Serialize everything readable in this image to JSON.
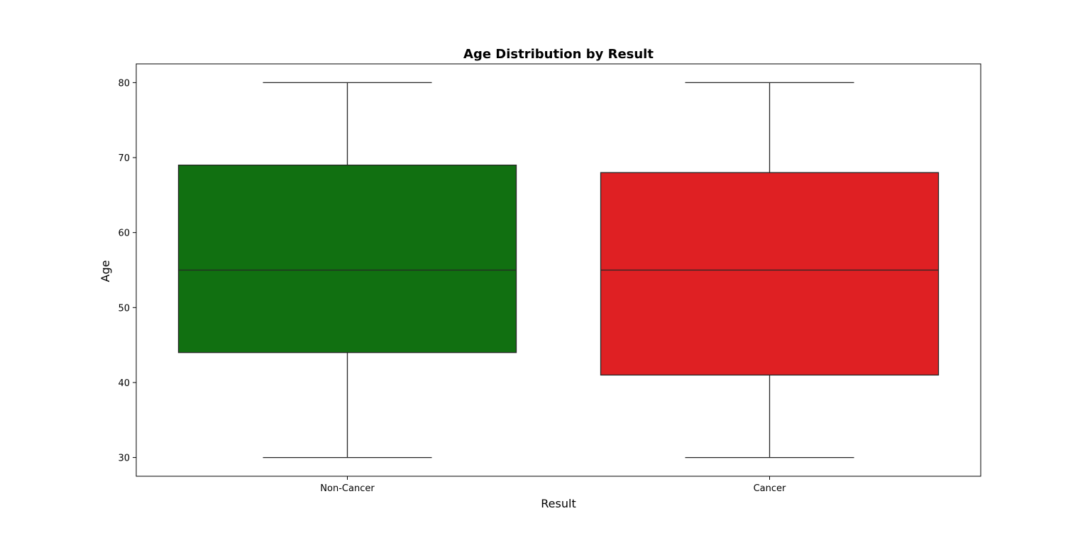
{
  "chart_data": {
    "type": "box",
    "title": "Age Distribution by Result",
    "xlabel": "Result",
    "ylabel": "Age",
    "categories": [
      "Non-Cancer",
      "Cancer"
    ],
    "boxes": [
      {
        "category": "Non-Cancer",
        "min": 30,
        "q1": 44,
        "median": 55,
        "q3": 69,
        "max": 80,
        "color": "#117011"
      },
      {
        "category": "Cancer",
        "min": 30,
        "q1": 41,
        "median": 55,
        "q3": 68,
        "max": 80,
        "color": "#df2023"
      }
    ],
    "ylim": [
      27.5,
      82.5
    ],
    "yticks": [
      30,
      40,
      50,
      60,
      70,
      80
    ],
    "grid": false,
    "legend": "none"
  },
  "colors": {
    "non_cancer": "#117011",
    "cancer": "#df2023",
    "line": "#262626",
    "background": "#ffffff"
  }
}
